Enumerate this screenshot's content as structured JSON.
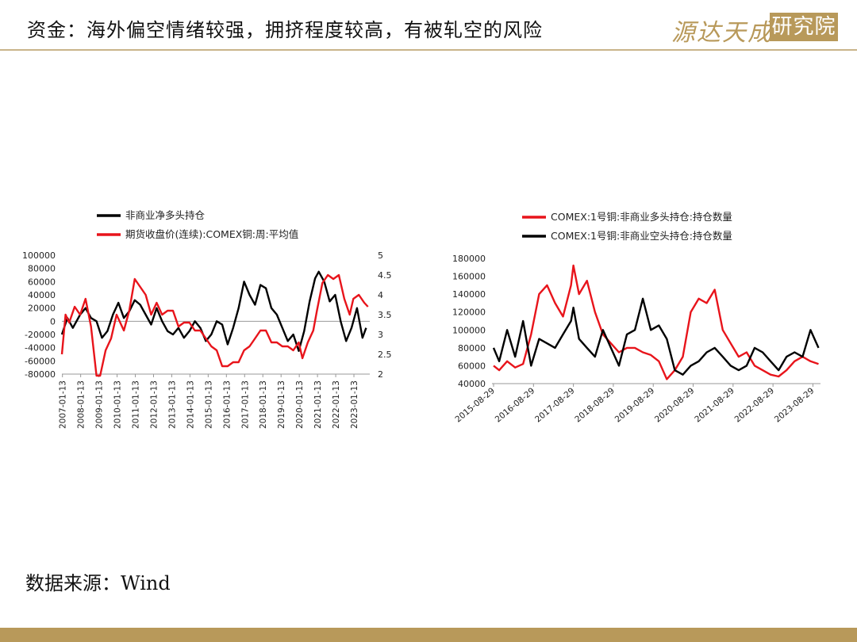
{
  "header": {
    "title": "资金：海外偏空情绪较强，拥挤程度较高，有被轧空的风险",
    "logo_text": "源达天成",
    "logo_box_text": "研究院"
  },
  "footer": {
    "source": "数据来源：Wind"
  },
  "colors": {
    "gold": "#b8995a",
    "red": "#e8141b",
    "black": "#000000"
  },
  "chart_data": [
    {
      "type": "line",
      "legend_position": "top",
      "x_ticks": [
        "2007-01-13",
        "2008-01-13",
        "2009-01-13",
        "2010-01-13",
        "2011-01-13",
        "2012-01-13",
        "2013-01-13",
        "2014-01-13",
        "2015-01-13",
        "2016-01-13",
        "2017-01-13",
        "2018-01-13",
        "2019-01-13",
        "2020-01-13",
        "2021-01-13",
        "2022-01-13",
        "2023-01-13"
      ],
      "y_left": {
        "min": -80000,
        "max": 100000,
        "ticks": [
          "100000",
          "80000",
          "60000",
          "40000",
          "20000",
          "0",
          "-20000",
          "-40000",
          "-60000",
          "-80000"
        ]
      },
      "y_right": {
        "min": 2,
        "max": 5,
        "ticks": [
          "5",
          "4.5",
          "4",
          "3.5",
          "3",
          "2.5",
          "2"
        ]
      },
      "series": [
        {
          "name": "非商业净多头持仓",
          "color": "#000000",
          "axis": "left",
          "x": [
            2007.0,
            2007.3,
            2007.6,
            2008.0,
            2008.3,
            2008.6,
            2008.9,
            2009.2,
            2009.5,
            2009.8,
            2010.1,
            2010.4,
            2010.7,
            2011.0,
            2011.3,
            2011.6,
            2011.9,
            2012.2,
            2012.5,
            2012.8,
            2013.1,
            2013.4,
            2013.7,
            2014.0,
            2014.3,
            2014.6,
            2014.9,
            2015.2,
            2015.5,
            2015.8,
            2016.1,
            2016.4,
            2016.7,
            2017.0,
            2017.3,
            2017.6,
            2017.9,
            2018.2,
            2018.5,
            2018.8,
            2019.1,
            2019.4,
            2019.7,
            2020.0,
            2020.3,
            2020.6,
            2020.9,
            2021.1,
            2021.4,
            2021.7,
            2022.0,
            2022.3,
            2022.6,
            2022.9,
            2023.2,
            2023.5,
            2023.7
          ],
          "values": [
            -20000,
            5000,
            -10000,
            10000,
            20000,
            5000,
            0,
            -25000,
            -15000,
            10000,
            28000,
            5000,
            15000,
            32000,
            25000,
            10000,
            -5000,
            20000,
            0,
            -15000,
            -20000,
            -10000,
            -25000,
            -15000,
            0,
            -10000,
            -30000,
            -20000,
            0,
            -5000,
            -35000,
            -10000,
            20000,
            60000,
            40000,
            25000,
            55000,
            50000,
            20000,
            10000,
            -10000,
            -30000,
            -20000,
            -45000,
            -15000,
            30000,
            65000,
            75000,
            60000,
            30000,
            40000,
            0,
            -30000,
            -10000,
            20000,
            -25000,
            -10000
          ]
        },
        {
          "name": "期货收盘价(连续):COMEX铜:周:平均值",
          "color": "#e8141b",
          "axis": "right",
          "x": [
            2007.0,
            2007.2,
            2007.4,
            2007.7,
            2008.0,
            2008.3,
            2008.6,
            2008.9,
            2009.1,
            2009.4,
            2009.7,
            2010.0,
            2010.4,
            2010.7,
            2011.0,
            2011.3,
            2011.6,
            2011.9,
            2012.2,
            2012.5,
            2012.8,
            2013.1,
            2013.4,
            2013.7,
            2014.0,
            2014.3,
            2014.6,
            2014.9,
            2015.2,
            2015.5,
            2015.8,
            2016.1,
            2016.4,
            2016.7,
            2017.0,
            2017.3,
            2017.6,
            2017.9,
            2018.2,
            2018.5,
            2018.8,
            2019.1,
            2019.4,
            2019.7,
            2020.0,
            2020.2,
            2020.5,
            2020.8,
            2021.0,
            2021.3,
            2021.6,
            2021.9,
            2022.2,
            2022.5,
            2022.8,
            2023.0,
            2023.3,
            2023.6,
            2023.8
          ],
          "values": [
            2.5,
            3.5,
            3.3,
            3.7,
            3.5,
            3.9,
            3.2,
            1.9,
            1.9,
            2.6,
            2.9,
            3.5,
            3.1,
            3.6,
            4.4,
            4.2,
            4.0,
            3.5,
            3.8,
            3.5,
            3.6,
            3.6,
            3.2,
            3.3,
            3.3,
            3.1,
            3.1,
            2.9,
            2.7,
            2.6,
            2.2,
            2.2,
            2.3,
            2.3,
            2.6,
            2.7,
            2.9,
            3.1,
            3.1,
            2.8,
            2.8,
            2.7,
            2.7,
            2.6,
            2.8,
            2.4,
            2.8,
            3.1,
            3.6,
            4.3,
            4.5,
            4.4,
            4.5,
            3.9,
            3.5,
            3.9,
            4.0,
            3.8,
            3.7
          ]
        }
      ]
    },
    {
      "type": "line",
      "legend_position": "top",
      "x_ticks": [
        "2015-08-29",
        "2016-08-29",
        "2017-08-29",
        "2018-08-29",
        "2019-08-29",
        "2020-08-29",
        "2021-08-29",
        "2022-08-29",
        "2023-08-29"
      ],
      "y": {
        "min": 40000,
        "max": 180000,
        "ticks": [
          "180000",
          "160000",
          "140000",
          "120000",
          "100000",
          "80000",
          "60000",
          "40000"
        ]
      },
      "series": [
        {
          "name": "COMEX:1号铜:非商业多头持仓:持仓数量",
          "color": "#e8141b",
          "x": [
            2015.66,
            2015.8,
            2016.0,
            2016.2,
            2016.4,
            2016.6,
            2016.8,
            2017.0,
            2017.2,
            2017.4,
            2017.6,
            2017.66,
            2017.8,
            2018.0,
            2018.2,
            2018.4,
            2018.6,
            2018.8,
            2019.0,
            2019.2,
            2019.4,
            2019.6,
            2019.8,
            2020.0,
            2020.2,
            2020.4,
            2020.6,
            2020.8,
            2021.0,
            2021.2,
            2021.4,
            2021.6,
            2021.8,
            2022.0,
            2022.2,
            2022.4,
            2022.6,
            2022.8,
            2023.0,
            2023.2,
            2023.4,
            2023.6,
            2023.8
          ],
          "values": [
            60000,
            55000,
            65000,
            58000,
            62000,
            95000,
            140000,
            150000,
            130000,
            115000,
            150000,
            172000,
            140000,
            155000,
            120000,
            95000,
            85000,
            75000,
            80000,
            80000,
            75000,
            72000,
            65000,
            45000,
            55000,
            70000,
            120000,
            135000,
            130000,
            145000,
            100000,
            85000,
            70000,
            75000,
            60000,
            55000,
            50000,
            48000,
            55000,
            65000,
            70000,
            65000,
            62000
          ]
        },
        {
          "name": "COMEX:1号铜:非商业空头持仓:持仓数量",
          "color": "#000000",
          "x": [
            2015.66,
            2015.8,
            2016.0,
            2016.2,
            2016.4,
            2016.6,
            2016.8,
            2017.0,
            2017.2,
            2017.4,
            2017.6,
            2017.66,
            2017.8,
            2018.0,
            2018.2,
            2018.4,
            2018.6,
            2018.8,
            2019.0,
            2019.2,
            2019.4,
            2019.6,
            2019.8,
            2020.0,
            2020.2,
            2020.4,
            2020.6,
            2020.8,
            2021.0,
            2021.2,
            2021.4,
            2021.6,
            2021.8,
            2022.0,
            2022.2,
            2022.4,
            2022.6,
            2022.8,
            2023.0,
            2023.2,
            2023.4,
            2023.6,
            2023.8
          ],
          "values": [
            80000,
            65000,
            100000,
            70000,
            110000,
            60000,
            90000,
            85000,
            80000,
            95000,
            110000,
            125000,
            90000,
            80000,
            70000,
            100000,
            80000,
            60000,
            95000,
            100000,
            135000,
            100000,
            105000,
            90000,
            55000,
            50000,
            60000,
            65000,
            75000,
            80000,
            70000,
            60000,
            55000,
            60000,
            80000,
            75000,
            65000,
            55000,
            70000,
            75000,
            70000,
            100000,
            80000
          ]
        }
      ]
    }
  ]
}
